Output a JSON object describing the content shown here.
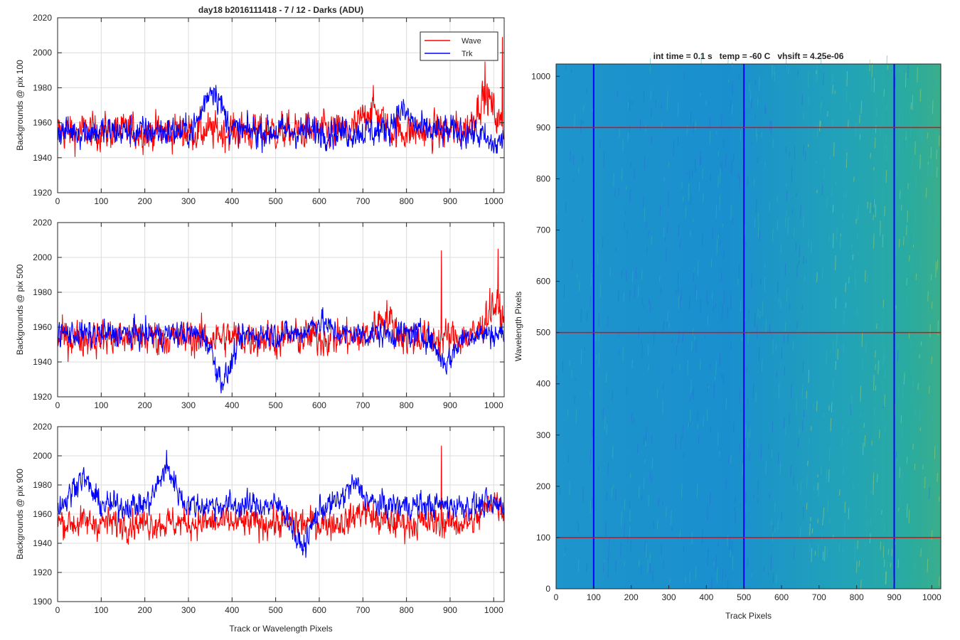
{
  "figure": {
    "title": "day18 b2016111418 - 7 / 12 - Darks (ADU)",
    "colors": {
      "wave": "#ff0000",
      "trk": "#0000ff",
      "grid": "#dcdcdc",
      "axis": "#262626",
      "image_base": "#1f9cc8"
    }
  },
  "chart_data": [
    {
      "type": "line",
      "ylabel": "Backgrounds @ pix 100",
      "xlabel": "",
      "xlim": [
        0,
        1024
      ],
      "ylim": [
        1920,
        2020
      ],
      "xticks": [
        0,
        100,
        200,
        300,
        400,
        500,
        600,
        700,
        800,
        900,
        1000
      ],
      "yticks": [
        1920,
        1940,
        1960,
        1980,
        2000,
        2020
      ],
      "grid": true,
      "legend": {
        "position": "top-right",
        "entries": [
          "Wave",
          "Trk"
        ]
      },
      "series": [
        {
          "name": "Wave",
          "color": "#ff0000",
          "baseline": 1955,
          "noise": 7,
          "features": [
            {
              "x": 720,
              "y": 1968
            },
            {
              "x": 980,
              "y": 1975
            }
          ],
          "peaks": [
            {
              "x": 1020,
              "y": 2009
            },
            {
              "x": 980,
              "y": 1995
            }
          ]
        },
        {
          "name": "Trk",
          "color": "#0000ff",
          "baseline": 1955,
          "noise": 6,
          "features": [
            {
              "x": 355,
              "y": 1980
            },
            {
              "x": 790,
              "y": 1966
            },
            {
              "x": 1000,
              "y": 1947
            }
          ],
          "peaks": []
        }
      ]
    },
    {
      "type": "line",
      "ylabel": "Backgrounds @ pix 500",
      "xlabel": "",
      "xlim": [
        0,
        1024
      ],
      "ylim": [
        1920,
        2020
      ],
      "xticks": [
        0,
        100,
        200,
        300,
        400,
        500,
        600,
        700,
        800,
        900,
        1000
      ],
      "yticks": [
        1920,
        1940,
        1960,
        1980,
        2000,
        2020
      ],
      "grid": true,
      "series": [
        {
          "name": "Wave",
          "color": "#ff0000",
          "baseline": 1954,
          "noise": 7,
          "features": [
            {
              "x": 750,
              "y": 1966
            },
            {
              "x": 1000,
              "y": 1972
            }
          ],
          "peaks": [
            {
              "x": 880,
              "y": 2004
            },
            {
              "x": 1010,
              "y": 2005
            }
          ]
        },
        {
          "name": "Trk",
          "color": "#0000ff",
          "baseline": 1956,
          "noise": 5,
          "features": [
            {
              "x": 380,
              "y": 1930
            },
            {
              "x": 600,
              "y": 1963
            },
            {
              "x": 890,
              "y": 1940
            }
          ],
          "peaks": []
        }
      ]
    },
    {
      "type": "line",
      "ylabel": "Backgrounds @ pix 900",
      "xlabel": "Track or Wavelength Pixels",
      "xlim": [
        0,
        1024
      ],
      "ylim": [
        1900,
        2020
      ],
      "xticks": [
        0,
        100,
        200,
        300,
        400,
        500,
        600,
        700,
        800,
        900,
        1000
      ],
      "yticks": [
        1900,
        1920,
        1940,
        1960,
        1980,
        2000,
        2020
      ],
      "grid": true,
      "series": [
        {
          "name": "Wave",
          "color": "#ff0000",
          "baseline": 1954,
          "noise": 7,
          "features": [
            {
              "x": 700,
              "y": 1962
            },
            {
              "x": 1000,
              "y": 1970
            }
          ],
          "peaks": [
            {
              "x": 880,
              "y": 2007
            }
          ]
        },
        {
          "name": "Trk",
          "color": "#0000ff",
          "baseline": 1966,
          "noise": 6,
          "features": [
            {
              "x": 55,
              "y": 1985
            },
            {
              "x": 250,
              "y": 1990
            },
            {
              "x": 560,
              "y": 1938
            },
            {
              "x": 680,
              "y": 1980
            }
          ],
          "peaks": [
            {
              "x": 250,
              "y": 2004
            }
          ]
        }
      ]
    },
    {
      "type": "heatmap",
      "title": "int time = 0.1 s   temp = -60 C   vhsift = 4.25e-06",
      "xlabel": "Track Pixels",
      "ylabel": "Wavelength Pixels",
      "xlim": [
        0,
        1024
      ],
      "ylim": [
        0,
        1024
      ],
      "xticks": [
        0,
        100,
        200,
        300,
        400,
        500,
        600,
        700,
        800,
        900,
        1000
      ],
      "yticks": [
        0,
        100,
        200,
        300,
        400,
        500,
        600,
        700,
        800,
        900,
        1000
      ],
      "vlines": {
        "values": [
          100,
          500,
          900
        ],
        "color": "#0000ff"
      },
      "hlines": {
        "values": [
          100,
          500,
          900
        ],
        "color": "#ff0000"
      }
    }
  ]
}
